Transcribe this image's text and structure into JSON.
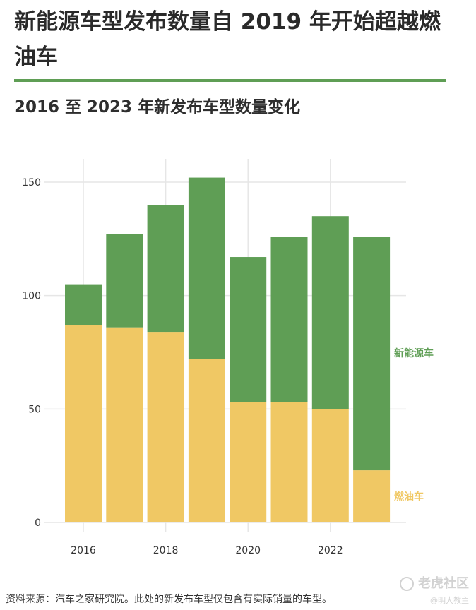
{
  "title": "新能源车型发布数量自 2019 年开始超越燃油车",
  "subtitle": "2016 至 2023 年新发布车型数量变化",
  "source": "资料来源：汽车之家研究院。此处的新发布车型仅包含有实际销量的车型。",
  "watermark": {
    "line1": "老虎社区",
    "line2": "@明大教主"
  },
  "colors": {
    "new_energy": "#5f9e55",
    "fuel": "#f0c864",
    "accent_rule": "#5f9e55"
  },
  "chart_data": {
    "type": "bar",
    "stacked": true,
    "categories": [
      2016,
      2017,
      2018,
      2019,
      2020,
      2021,
      2022,
      2023
    ],
    "series": [
      {
        "name": "燃油车",
        "values": [
          87,
          86,
          84,
          72,
          53,
          53,
          50,
          23
        ]
      },
      {
        "name": "新能源车",
        "values": [
          18,
          41,
          56,
          80,
          64,
          73,
          85,
          103
        ]
      }
    ],
    "x_ticks": [
      "2016",
      "2018",
      "2020",
      "2022"
    ],
    "y_ticks": [
      0,
      50,
      100,
      150
    ],
    "ylim": [
      0,
      160
    ],
    "xlim": [
      2015.5,
      2023.5
    ],
    "grid": true,
    "legend_placement": "direct labels at right"
  }
}
